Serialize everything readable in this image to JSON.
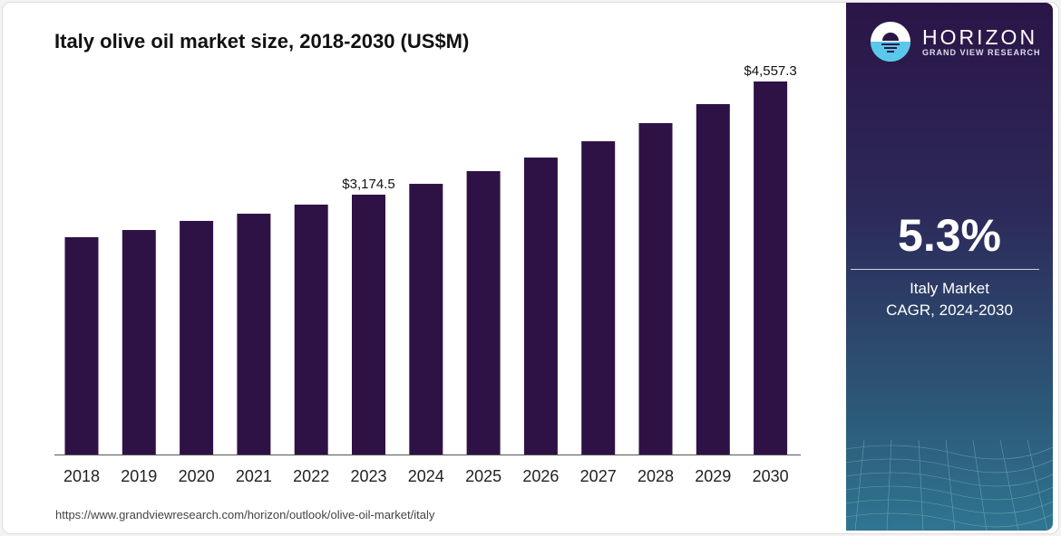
{
  "chart_data": {
    "type": "bar",
    "title": "Italy olive oil market size, 2018-2030 (US$M)",
    "categories": [
      "2018",
      "2019",
      "2020",
      "2021",
      "2022",
      "2023",
      "2024",
      "2025",
      "2026",
      "2027",
      "2028",
      "2029",
      "2030"
    ],
    "values": [
      2655,
      2743,
      2854,
      2942,
      3053,
      3174.5,
      3307,
      3462,
      3628,
      3827,
      4049,
      4281,
      4557.3
    ],
    "data_labels": {
      "2023": "$3,174.5",
      "2030": "$4,557.3"
    },
    "ylim": [
      0,
      4557.3
    ],
    "grid": false,
    "bar_color": "#2f1245"
  },
  "source_url": "https://www.grandviewresearch.com/horizon/outlook/olive-oil-market/italy",
  "panel": {
    "logo_main": "HORIZON",
    "logo_sub": "GRAND VIEW RESEARCH",
    "cagr_value": "5.3%",
    "cagr_line1": "Italy Market",
    "cagr_line2": "CAGR, 2024-2030"
  }
}
